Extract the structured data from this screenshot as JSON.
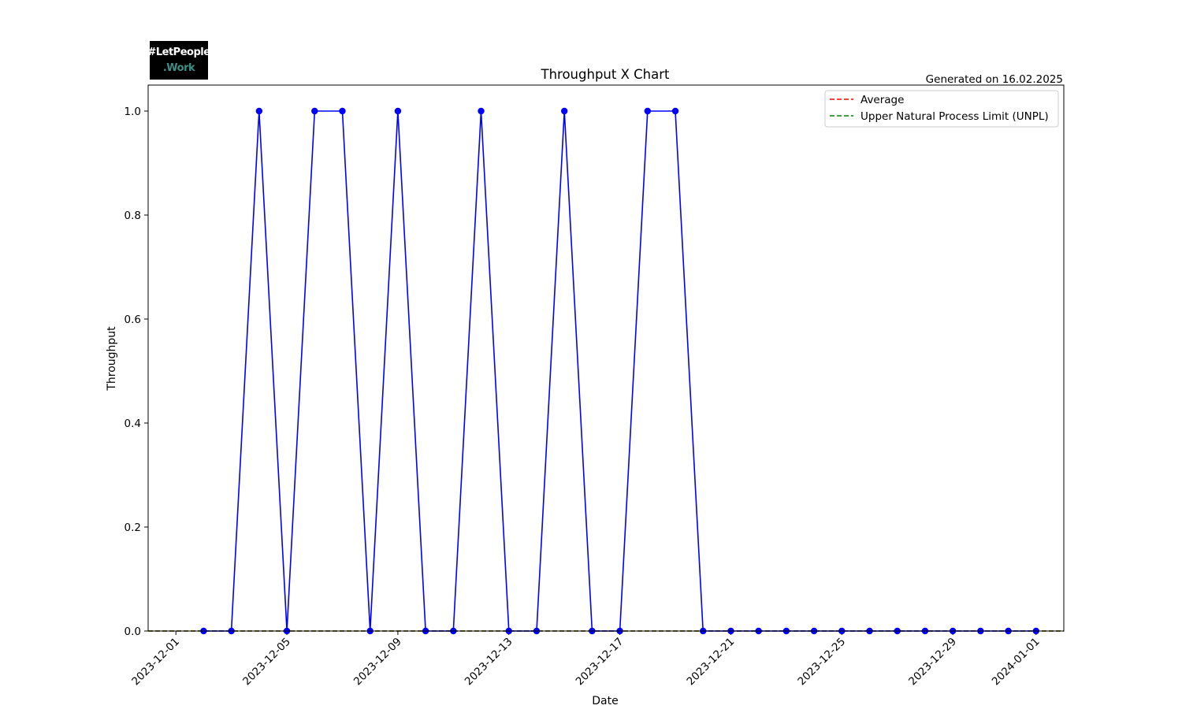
{
  "logo": {
    "line1": "#LetPeople",
    "line2": ".Work"
  },
  "generated_text": "Generated on 16.02.2025",
  "chart_data": {
    "type": "line",
    "title": "Throughput X Chart",
    "xlabel": "Date",
    "ylabel": "Throughput",
    "x": [
      "2023-12-02",
      "2023-12-03",
      "2023-12-04",
      "2023-12-05",
      "2023-12-06",
      "2023-12-07",
      "2023-12-08",
      "2023-12-09",
      "2023-12-10",
      "2023-12-11",
      "2023-12-12",
      "2023-12-13",
      "2023-12-14",
      "2023-12-15",
      "2023-12-16",
      "2023-12-17",
      "2023-12-18",
      "2023-12-19",
      "2023-12-20",
      "2023-12-21",
      "2023-12-22",
      "2023-12-23",
      "2023-12-24",
      "2023-12-25",
      "2023-12-26",
      "2023-12-27",
      "2023-12-28",
      "2023-12-29",
      "2023-12-30",
      "2023-12-31",
      "2024-01-01"
    ],
    "series": [
      {
        "color": "#0000ff",
        "values": [
          0,
          0,
          1,
          0,
          1,
          1,
          0,
          1,
          0,
          0,
          1,
          0,
          0,
          1,
          0,
          0,
          1,
          1,
          0,
          0,
          0,
          0,
          0,
          0,
          0,
          0,
          0,
          0,
          0,
          0,
          0
        ]
      }
    ],
    "reference_lines": [
      {
        "name": "Average",
        "value": 0,
        "color": "#ff0000",
        "style": "dashed"
      },
      {
        "name": "Upper Natural Process Limit (UNPL)",
        "value": 0,
        "color": "#008000",
        "style": "dashed"
      }
    ],
    "xticks": [
      "2023-12-01",
      "2023-12-05",
      "2023-12-09",
      "2023-12-13",
      "2023-12-17",
      "2023-12-21",
      "2023-12-25",
      "2023-12-29",
      "2024-01-01"
    ],
    "yticks": [
      "0.0",
      "0.2",
      "0.4",
      "0.6",
      "0.8",
      "1.0"
    ],
    "xlim": [
      "2023-11-30",
      "2024-01-02"
    ],
    "ylim": [
      0,
      1.05
    ],
    "grid": false,
    "legend_position": "top-right"
  }
}
